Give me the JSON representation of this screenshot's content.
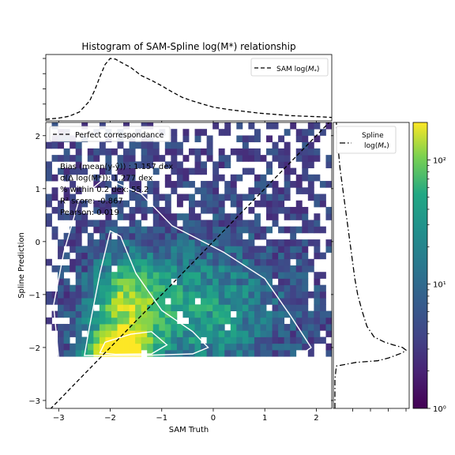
{
  "title": "Histogram of SAM-Spline log(M*) relationship",
  "chart_data": [
    {
      "type": "heatmap",
      "xlabel": "SAM Truth",
      "ylabel": "Spline Prediction",
      "xlim": [
        -3.25,
        2.3
      ],
      "ylim": [
        -3.15,
        2.25
      ],
      "x_ticks": [
        -3,
        -2,
        -1,
        0,
        1,
        2
      ],
      "y_ticks": [
        -3,
        -2,
        -1,
        0,
        1,
        2
      ],
      "x_tick_labels": [
        "−3",
        "−2",
        "−1",
        "0",
        "1",
        "2"
      ],
      "y_tick_labels": [
        "−3",
        "−2",
        "−1",
        "0",
        "1",
        "2"
      ],
      "y_data_min": -2.2,
      "colormap": "viridis",
      "color_scale": "log",
      "colorbar_range": [
        1,
        200
      ],
      "colorbar_ticks": [
        1,
        10,
        100
      ],
      "colorbar_tick_labels": [
        "10⁰",
        "10¹",
        "10²"
      ],
      "legend": {
        "label": "Perfect correspondance",
        "placement": "top-left"
      },
      "reference_line": {
        "x": [
          -3.25,
          2.3
        ],
        "y": [
          -3.25,
          2.3
        ],
        "style": "dashed",
        "color": "#000000"
      },
      "density_peak": {
        "x": -1.9,
        "y": -2.05
      },
      "stats_text": [
        "Bias (mean(y-ŷ)) : 1.157 dex",
        "σ(Δ log(M*)): 1.277 dex",
        "% within 0.2 dex: 55.2",
        "R² score: -0.867",
        "Pearson: 0.019"
      ]
    },
    {
      "type": "line",
      "name": "top-marginal",
      "legend": {
        "label": "SAM log(M*)",
        "placement": "top-right"
      },
      "line_style": "dashed",
      "x": [
        -3.25,
        -3.0,
        -2.8,
        -2.6,
        -2.4,
        -2.3,
        -2.2,
        -2.1,
        -2.0,
        -1.9,
        -1.8,
        -1.6,
        -1.4,
        -1.2,
        -1.0,
        -0.8,
        -0.6,
        -0.4,
        -0.2,
        0.0,
        0.3,
        0.6,
        0.9,
        1.2,
        1.5,
        1.8,
        2.1,
        2.3
      ],
      "y": [
        0.0,
        0.02,
        0.05,
        0.12,
        0.3,
        0.48,
        0.7,
        0.9,
        1.0,
        0.99,
        0.94,
        0.85,
        0.72,
        0.64,
        0.55,
        0.45,
        0.36,
        0.3,
        0.25,
        0.2,
        0.16,
        0.13,
        0.1,
        0.08,
        0.06,
        0.05,
        0.04,
        0.03
      ]
    },
    {
      "type": "line",
      "name": "right-marginal",
      "legend": {
        "label": [
          "Spline",
          "log(M*)"
        ],
        "placement": "top-right"
      },
      "line_style": "dash-dot",
      "y": [
        -3.15,
        -2.6,
        -2.35,
        -2.28,
        -2.25,
        -2.2,
        -2.15,
        -2.1,
        -2.05,
        -2.0,
        -1.95,
        -1.9,
        -1.8,
        -1.6,
        -1.3,
        -1.0,
        -0.7,
        -0.4,
        -0.1,
        0.2,
        0.5,
        0.8,
        1.1,
        1.4,
        1.7,
        2.0,
        2.25
      ],
      "x": [
        0.0,
        0.0,
        0.02,
        0.3,
        0.6,
        0.75,
        0.85,
        0.95,
        1.0,
        0.95,
        0.82,
        0.7,
        0.55,
        0.45,
        0.38,
        0.32,
        0.28,
        0.25,
        0.22,
        0.19,
        0.16,
        0.13,
        0.1,
        0.07,
        0.05,
        0.03,
        0.02
      ]
    }
  ]
}
